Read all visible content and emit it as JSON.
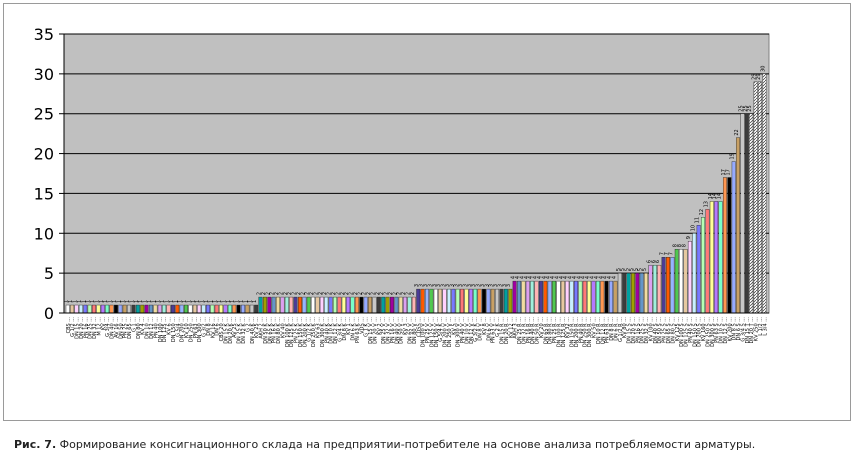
{
  "caption": {
    "label": "Рис. 7.",
    "text": " Формирование консигнационного склада на предприятии-потребителе на основе анализа потребляемости арматуры."
  },
  "chart_data": {
    "type": "bar",
    "ylim": [
      0,
      35
    ],
    "yticks": [
      "0",
      "5",
      "10",
      "15",
      "20",
      "25",
      "30",
      "35"
    ],
    "grid": true,
    "plot_background": "#c0c0c0",
    "title": "",
    "xlabel": "",
    "ylabel": "",
    "values": [
      1,
      1,
      1,
      1,
      1,
      1,
      1,
      1,
      1,
      1,
      1,
      1,
      1,
      1,
      1,
      1,
      1,
      1,
      1,
      1,
      1,
      1,
      1,
      1,
      1,
      1,
      1,
      1,
      1,
      1,
      1,
      1,
      1,
      1,
      1,
      1,
      1,
      1,
      1,
      1,
      1,
      1,
      1,
      1,
      2,
      2,
      2,
      2,
      2,
      2,
      2,
      2,
      2,
      2,
      2,
      2,
      2,
      2,
      2,
      2,
      2,
      2,
      2,
      2,
      2,
      2,
      2,
      2,
      2,
      2,
      2,
      2,
      2,
      2,
      2,
      2,
      2,
      2,
      2,
      2,
      3,
      3,
      3,
      3,
      3,
      3,
      3,
      3,
      3,
      3,
      3,
      3,
      3,
      3,
      3,
      3,
      3,
      3,
      3,
      3,
      3,
      3,
      4,
      4,
      4,
      4,
      4,
      4,
      4,
      4,
      4,
      4,
      4,
      4,
      4,
      4,
      4,
      4,
      4,
      4,
      4,
      4,
      4,
      4,
      4,
      4,
      5,
      5,
      5,
      5,
      5,
      5,
      5,
      6,
      6,
      6,
      7,
      7,
      7,
      8,
      8,
      8,
      9,
      10,
      11,
      12,
      13,
      14,
      14,
      14,
      17,
      17,
      19,
      22,
      25,
      25,
      25,
      29,
      29,
      30
    ],
    "colors": [
      "#ffffff",
      "#e6c8a0",
      "#ffd0ff",
      "#c8f0ff",
      "#7878ff",
      "#b4ffb4",
      "#ff7878",
      "#ffff96",
      "#b478ff",
      "#78ffc8",
      "#ff9650",
      "#000000",
      "#96aaff",
      "#c8a064",
      "#c8c8c8",
      "#3c3c3c",
      "#00a0a0",
      "#a0a000",
      "#a000a0",
      "#6496c8",
      "#f0dca0",
      "#dca0f0",
      "#a0f0dc",
      "#ffb4b4",
      "#4b3c96",
      "#ff5a00",
      "#96b4ff",
      "#50c850"
    ],
    "category_labels": [
      "CBS ...",
      "G 1/2 ...",
      "DN 15 ...",
      "DN 20 ...",
      "PN 16 ...",
      "DN 25 ...",
      "DN 32 ...",
      "M 12 ...",
      "KV ...",
      "G 3/4 ...",
      "DN 40 ...",
      "AV 16 ...",
      "DN 50 ...",
      "PN 25 ...",
      "DN 65 ...",
      "G 1 ...",
      "DN 80 ...",
      "KV 4 ...",
      "DN 10 ...",
      "DN 12 ...",
      "PN 40 ...",
      "DN 100 ...",
      "DN 125 ...",
      "KV 6 ...",
      "DN 150 ...",
      "G 5/4 ...",
      "DN 200 ...",
      "KV 10 ...",
      "DN 250 ...",
      "PN 63 ...",
      "DN 300 ...",
      "G 3/2 ...",
      "DN 8 ...",
      "KV 16 ...",
      "DN 6 ...",
      "CBS 20 ...",
      "DN 15 K ...",
      "DN 20 K ...",
      "AV 25 ...",
      "DN 25 K ...",
      "DN 32 K ...",
      "G 2 ...",
      "DN 40 K ...",
      "KV 25 ...",
      "AKH 2 ...",
      "DN 50 K ...",
      "DN 65 K ...",
      "PN 16 K ...",
      "DN 80 K ...",
      "KV 40 ...",
      "DN 100 K ...",
      "DN 125 K ...",
      "PN 25 K ...",
      "DN 150 K ...",
      "DN 200 K ...",
      "G 1/2 K ...",
      "DN 250 K ...",
      "KV 63 ...",
      "DN 300 K ...",
      "PN 40 K ...",
      "DN 10 K ...",
      "DN 12 K ...",
      "G 3/4 K ...",
      "DN 8 K ...",
      "KV 1 ...",
      "DN 6 K ...",
      "PN 63 K ...",
      "VDS ...",
      "G 1 K ...",
      "DN 15 V ...",
      "DN 20 V ...",
      "KV 2 ...",
      "DN 25 V ...",
      "DN 32 V ...",
      "PN 16 V ...",
      "DN 40 V ...",
      "DN 50 V ...",
      "KV 3 ...",
      "DN 65 V ...",
      "DN 80 V ...",
      "CDSS ...",
      "DN 100 V ...",
      "PN 25 V ...",
      "DN 125 V ...",
      "DN 150 V ...",
      "G 5/4 K ...",
      "DN 200 V ...",
      "DN 250 V ...",
      "KV 5 ...",
      "DN 300 V ...",
      "PN 40 V ...",
      "DN 10 V ...",
      "DN 12 V ...",
      "G 3/2 K ...",
      "DN 8 V ...",
      "KV 8 ...",
      "DN 6 V ...",
      "PN 63 V ...",
      "G 2 K ...",
      "DN 15 R ...",
      "DN 20 R ...",
      "KV 12 ...",
      "AKH 3 ...",
      "DN 25 R ...",
      "DN 32 R ...",
      "PN 16 R ...",
      "DN 40 R ...",
      "DN 50 R ...",
      "KV 20 ...",
      "DN 65 R ...",
      "DN 80 R ...",
      "PN 25 R ...",
      "DN 100 R ...",
      "DN 125 R ...",
      "KV 32 ...",
      "DN 150 R ...",
      "DN 200 R ...",
      "PN 40 R ...",
      "DN 250 R ...",
      "DN 300 R ...",
      "KV 50 ...",
      "DN 10 R ...",
      "DN 12 R ...",
      "PN 63 R ...",
      "DN 8 R ...",
      "DN 6 R ...",
      "G 1/2 R ...",
      "KV 80 ...",
      "DN 15 S ...",
      "DN 20 S ...",
      "PN 16 S ...",
      "DN 25 S ...",
      "DN 32 S ...",
      "KV 100 ...",
      "DN 40 S ...",
      "DN 50 S ...",
      "PN 25 S ...",
      "DN 65 S ...",
      "DN 80 S ...",
      "KV 125 ...",
      "DN 100 S ...",
      "DN 125 S ...",
      "PN 40 S ...",
      "DN 150 S ...",
      "DN 200 S ...",
      "KV 160 ...",
      "DN 250 S ...",
      "DN 300 S ...",
      "PN 63 S ...",
      "DN 10 S ...",
      "DN 12 S ...",
      "KV 200 ...",
      "DN 8 S ...",
      "DN 6 S ...",
      "G 3/4 S ...",
      "DN 15 T ...",
      "DN 20 T ...",
      "KV 250 ...",
      "L 1/2 ...",
      "L 3/4 ..."
    ]
  }
}
